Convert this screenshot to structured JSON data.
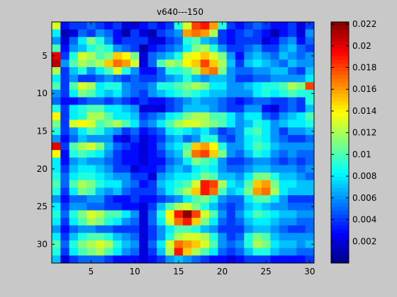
{
  "chart_data": {
    "type": "heatmap",
    "title": "v640---150",
    "xlabel": "",
    "ylabel": "",
    "rows": 32,
    "cols": 30,
    "x_ticks": [
      5,
      10,
      15,
      20,
      25,
      30
    ],
    "y_ticks": [
      5,
      10,
      15,
      20,
      25,
      30
    ],
    "y_direction": "down",
    "colorbar": {
      "min": 0,
      "max": 0.0222,
      "colormap": "jet",
      "ticks": [
        0.002,
        0.004,
        0.006,
        0.008,
        0.01,
        0.012,
        0.014,
        0.016,
        0.018,
        0.02,
        0.022
      ],
      "tick_labels": [
        "0.002",
        "0.004",
        "0.006",
        "0.008",
        "0.01",
        "0.012",
        "0.014",
        "0.016",
        "0.018",
        "0.02",
        "0.022"
      ]
    },
    "values": [
      [
        0.013,
        0.003,
        0.004,
        0.004,
        0.005,
        0.004,
        0.003,
        0.004,
        0.002,
        0.002,
        0.003,
        0.004,
        0.003,
        0.004,
        0.009,
        0.013,
        0.018,
        0.019,
        0.016,
        0.009,
        0.004,
        0.003,
        0.004,
        0.005,
        0.004,
        0.003,
        0.003,
        0.004,
        0.002,
        0.004
      ],
      [
        0.008,
        0.001,
        0.002,
        0.005,
        0.004,
        0.006,
        0.005,
        0.003,
        0.001,
        0.004,
        0.002,
        0.001,
        0.004,
        0.005,
        0.006,
        0.016,
        0.017,
        0.016,
        0.012,
        0.004,
        0.003,
        0.004,
        0.005,
        0.004,
        0.003,
        0.001,
        0.003,
        0.004,
        0.002,
        0.006
      ],
      [
        0.006,
        0.002,
        0.005,
        0.008,
        0.011,
        0.009,
        0.006,
        0.003,
        0.004,
        0.004,
        0.004,
        0.002,
        0.002,
        0.004,
        0.005,
        0.009,
        0.01,
        0.007,
        0.006,
        0.004,
        0.003,
        0.004,
        0.004,
        0.004,
        0.002,
        0.003,
        0.005,
        0.006,
        0.003,
        0.005
      ],
      [
        0.01,
        0.003,
        0.006,
        0.007,
        0.009,
        0.01,
        0.009,
        0.006,
        0.005,
        0.004,
        0.001,
        0.003,
        0.004,
        0.005,
        0.006,
        0.008,
        0.011,
        0.012,
        0.009,
        0.006,
        0.004,
        0.004,
        0.005,
        0.006,
        0.004,
        0.004,
        0.006,
        0.007,
        0.005,
        0.004
      ],
      [
        0.02,
        0.004,
        0.009,
        0.013,
        0.012,
        0.01,
        0.011,
        0.015,
        0.014,
        0.011,
        0.002,
        0.005,
        0.006,
        0.007,
        0.009,
        0.013,
        0.014,
        0.015,
        0.013,
        0.011,
        0.006,
        0.003,
        0.006,
        0.007,
        0.006,
        0.005,
        0.007,
        0.006,
        0.005,
        0.006
      ],
      [
        0.021,
        0.006,
        0.01,
        0.012,
        0.011,
        0.012,
        0.015,
        0.017,
        0.016,
        0.013,
        0.002,
        0.005,
        0.01,
        0.012,
        0.011,
        0.014,
        0.015,
        0.018,
        0.015,
        0.012,
        0.007,
        0.004,
        0.007,
        0.008,
        0.007,
        0.006,
        0.005,
        0.007,
        0.006,
        0.006
      ],
      [
        0.012,
        0.004,
        0.007,
        0.009,
        0.006,
        0.008,
        0.01,
        0.013,
        0.009,
        0.006,
        0.003,
        0.003,
        0.005,
        0.009,
        0.009,
        0.01,
        0.012,
        0.016,
        0.017,
        0.011,
        0.006,
        0.005,
        0.005,
        0.006,
        0.006,
        0.007,
        0.007,
        0.005,
        0.004,
        0.007
      ],
      [
        0.008,
        0.004,
        0.006,
        0.004,
        0.004,
        0.005,
        0.006,
        0.005,
        0.004,
        0.005,
        0.004,
        0.004,
        0.005,
        0.006,
        0.007,
        0.009,
        0.007,
        0.006,
        0.007,
        0.007,
        0.006,
        0.004,
        0.004,
        0.005,
        0.005,
        0.006,
        0.006,
        0.006,
        0.006,
        0.008
      ],
      [
        0.01,
        0.004,
        0.01,
        0.013,
        0.012,
        0.008,
        0.009,
        0.009,
        0.006,
        0.005,
        0.005,
        0.006,
        0.009,
        0.009,
        0.01,
        0.011,
        0.012,
        0.011,
        0.008,
        0.008,
        0.006,
        0.006,
        0.007,
        0.008,
        0.009,
        0.009,
        0.01,
        0.012,
        0.011,
        0.018
      ],
      [
        0.006,
        0.004,
        0.008,
        0.011,
        0.01,
        0.008,
        0.007,
        0.008,
        0.006,
        0.005,
        0.004,
        0.006,
        0.007,
        0.008,
        0.009,
        0.01,
        0.009,
        0.008,
        0.007,
        0.007,
        0.006,
        0.006,
        0.006,
        0.008,
        0.009,
        0.008,
        0.009,
        0.01,
        0.009,
        0.009
      ],
      [
        0.005,
        0.003,
        0.003,
        0.004,
        0.005,
        0.005,
        0.004,
        0.005,
        0.004,
        0.003,
        0.004,
        0.003,
        0.003,
        0.004,
        0.005,
        0.006,
        0.007,
        0.006,
        0.006,
        0.005,
        0.004,
        0.003,
        0.004,
        0.005,
        0.005,
        0.004,
        0.004,
        0.005,
        0.004,
        0.009
      ],
      [
        0.009,
        0.004,
        0.008,
        0.009,
        0.01,
        0.01,
        0.008,
        0.008,
        0.007,
        0.006,
        0.002,
        0.002,
        0.002,
        0.004,
        0.005,
        0.007,
        0.007,
        0.007,
        0.006,
        0.005,
        0.004,
        0.004,
        0.006,
        0.006,
        0.003,
        0.002,
        0.004,
        0.005,
        0.004,
        0.007
      ],
      [
        0.014,
        0.004,
        0.008,
        0.009,
        0.012,
        0.012,
        0.01,
        0.008,
        0.008,
        0.007,
        0.004,
        0.005,
        0.006,
        0.008,
        0.009,
        0.011,
        0.012,
        0.012,
        0.01,
        0.01,
        0.008,
        0.006,
        0.008,
        0.008,
        0.005,
        0.004,
        0.006,
        0.007,
        0.008,
        0.01
      ],
      [
        0.011,
        0.004,
        0.013,
        0.014,
        0.013,
        0.01,
        0.011,
        0.012,
        0.01,
        0.008,
        0.005,
        0.006,
        0.008,
        0.01,
        0.012,
        0.013,
        0.013,
        0.012,
        0.011,
        0.01,
        0.008,
        0.006,
        0.007,
        0.009,
        0.008,
        0.006,
        0.007,
        0.008,
        0.008,
        0.009
      ],
      [
        0.009,
        0.004,
        0.006,
        0.008,
        0.01,
        0.009,
        0.007,
        0.006,
        0.004,
        0.005,
        0.003,
        0.004,
        0.005,
        0.008,
        0.009,
        0.008,
        0.007,
        0.008,
        0.006,
        0.004,
        0.005,
        0.006,
        0.009,
        0.01,
        0.008,
        0.006,
        0.004,
        0.006,
        0.006,
        0.007
      ],
      [
        0.006,
        0.003,
        0.005,
        0.007,
        0.006,
        0.006,
        0.006,
        0.003,
        0.002,
        0.004,
        0.002,
        0.003,
        0.004,
        0.006,
        0.007,
        0.005,
        0.006,
        0.009,
        0.009,
        0.005,
        0.004,
        0.006,
        0.008,
        0.009,
        0.008,
        0.006,
        0.005,
        0.004,
        0.004,
        0.005
      ],
      [
        0.02,
        0.004,
        0.01,
        0.012,
        0.013,
        0.011,
        0.007,
        0.005,
        0.004,
        0.003,
        0.002,
        0.003,
        0.005,
        0.007,
        0.008,
        0.01,
        0.015,
        0.016,
        0.014,
        0.009,
        0.006,
        0.006,
        0.008,
        0.01,
        0.009,
        0.007,
        0.006,
        0.006,
        0.006,
        0.006
      ],
      [
        0.014,
        0.003,
        0.009,
        0.01,
        0.009,
        0.008,
        0.006,
        0.004,
        0.003,
        0.003,
        0.002,
        0.003,
        0.004,
        0.006,
        0.007,
        0.011,
        0.017,
        0.018,
        0.015,
        0.011,
        0.006,
        0.005,
        0.007,
        0.009,
        0.008,
        0.006,
        0.005,
        0.006,
        0.005,
        0.005
      ],
      [
        0.008,
        0.003,
        0.006,
        0.007,
        0.006,
        0.006,
        0.005,
        0.004,
        0.003,
        0.003,
        0.002,
        0.003,
        0.003,
        0.005,
        0.006,
        0.008,
        0.011,
        0.01,
        0.009,
        0.006,
        0.004,
        0.004,
        0.005,
        0.006,
        0.006,
        0.005,
        0.004,
        0.005,
        0.004,
        0.005
      ],
      [
        0.008,
        0.004,
        0.007,
        0.008,
        0.008,
        0.007,
        0.006,
        0.004,
        0.004,
        0.002,
        0.003,
        0.003,
        0.004,
        0.006,
        0.007,
        0.006,
        0.008,
        0.009,
        0.008,
        0.006,
        0.005,
        0.005,
        0.006,
        0.007,
        0.007,
        0.006,
        0.006,
        0.006,
        0.005,
        0.006
      ],
      [
        0.009,
        0.005,
        0.008,
        0.009,
        0.009,
        0.008,
        0.007,
        0.006,
        0.006,
        0.004,
        0.004,
        0.002,
        0.006,
        0.007,
        0.008,
        0.008,
        0.009,
        0.011,
        0.01,
        0.007,
        0.007,
        0.006,
        0.008,
        0.011,
        0.011,
        0.009,
        0.007,
        0.007,
        0.006,
        0.005
      ],
      [
        0.01,
        0.005,
        0.01,
        0.012,
        0.011,
        0.009,
        0.008,
        0.008,
        0.006,
        0.005,
        0.003,
        0.004,
        0.007,
        0.008,
        0.009,
        0.01,
        0.013,
        0.019,
        0.018,
        0.012,
        0.008,
        0.007,
        0.01,
        0.015,
        0.016,
        0.011,
        0.008,
        0.008,
        0.007,
        0.007
      ],
      [
        0.009,
        0.004,
        0.008,
        0.011,
        0.01,
        0.007,
        0.006,
        0.007,
        0.005,
        0.004,
        0.004,
        0.004,
        0.006,
        0.008,
        0.01,
        0.012,
        0.015,
        0.019,
        0.017,
        0.01,
        0.007,
        0.008,
        0.011,
        0.016,
        0.017,
        0.012,
        0.008,
        0.007,
        0.007,
        0.007
      ],
      [
        0.006,
        0.003,
        0.005,
        0.005,
        0.006,
        0.006,
        0.004,
        0.003,
        0.003,
        0.004,
        0.003,
        0.003,
        0.004,
        0.005,
        0.006,
        0.008,
        0.01,
        0.011,
        0.009,
        0.006,
        0.005,
        0.005,
        0.008,
        0.01,
        0.01,
        0.008,
        0.006,
        0.004,
        0.004,
        0.004
      ],
      [
        0.008,
        0.004,
        0.006,
        0.006,
        0.005,
        0.005,
        0.004,
        0.004,
        0.003,
        0.003,
        0.002,
        0.004,
        0.007,
        0.01,
        0.012,
        0.013,
        0.011,
        0.009,
        0.007,
        0.005,
        0.004,
        0.005,
        0.007,
        0.008,
        0.007,
        0.006,
        0.006,
        0.005,
        0.005,
        0.005
      ],
      [
        0.009,
        0.005,
        0.009,
        0.011,
        0.013,
        0.012,
        0.01,
        0.01,
        0.008,
        0.006,
        0.002,
        0.005,
        0.009,
        0.014,
        0.019,
        0.022,
        0.018,
        0.013,
        0.01,
        0.006,
        0.004,
        0.006,
        0.008,
        0.01,
        0.009,
        0.008,
        0.007,
        0.007,
        0.006,
        0.006
      ],
      [
        0.008,
        0.004,
        0.008,
        0.01,
        0.012,
        0.011,
        0.009,
        0.008,
        0.006,
        0.005,
        0.002,
        0.005,
        0.008,
        0.013,
        0.017,
        0.019,
        0.015,
        0.011,
        0.008,
        0.005,
        0.004,
        0.005,
        0.007,
        0.008,
        0.008,
        0.007,
        0.006,
        0.006,
        0.005,
        0.005
      ],
      [
        0.006,
        0.003,
        0.005,
        0.006,
        0.006,
        0.005,
        0.005,
        0.004,
        0.004,
        0.004,
        0.002,
        0.004,
        0.006,
        0.008,
        0.01,
        0.01,
        0.009,
        0.007,
        0.006,
        0.004,
        0.004,
        0.004,
        0.006,
        0.007,
        0.007,
        0.006,
        0.005,
        0.004,
        0.004,
        0.005
      ],
      [
        0.008,
        0.004,
        0.007,
        0.009,
        0.01,
        0.01,
        0.009,
        0.007,
        0.006,
        0.005,
        0.002,
        0.004,
        0.006,
        0.009,
        0.012,
        0.013,
        0.013,
        0.012,
        0.009,
        0.006,
        0.004,
        0.005,
        0.009,
        0.011,
        0.01,
        0.007,
        0.006,
        0.006,
        0.006,
        0.006
      ],
      [
        0.01,
        0.005,
        0.009,
        0.011,
        0.012,
        0.013,
        0.012,
        0.009,
        0.007,
        0.006,
        0.002,
        0.005,
        0.008,
        0.013,
        0.017,
        0.016,
        0.015,
        0.013,
        0.01,
        0.006,
        0.005,
        0.006,
        0.009,
        0.012,
        0.011,
        0.008,
        0.007,
        0.007,
        0.006,
        0.007
      ],
      [
        0.009,
        0.004,
        0.008,
        0.01,
        0.011,
        0.012,
        0.01,
        0.008,
        0.006,
        0.005,
        0.002,
        0.004,
        0.007,
        0.012,
        0.019,
        0.015,
        0.012,
        0.01,
        0.008,
        0.005,
        0.004,
        0.005,
        0.007,
        0.009,
        0.009,
        0.007,
        0.006,
        0.006,
        0.005,
        0.005
      ],
      [
        0.007,
        0.002,
        0.004,
        0.005,
        0.005,
        0.005,
        0.004,
        0.003,
        0.003,
        0.003,
        0.002,
        0.003,
        0.004,
        0.006,
        0.007,
        0.006,
        0.005,
        0.004,
        0.003,
        0.003,
        0.002,
        0.003,
        0.004,
        0.004,
        0.004,
        0.003,
        0.003,
        0.003,
        0.003,
        0.004
      ]
    ]
  }
}
